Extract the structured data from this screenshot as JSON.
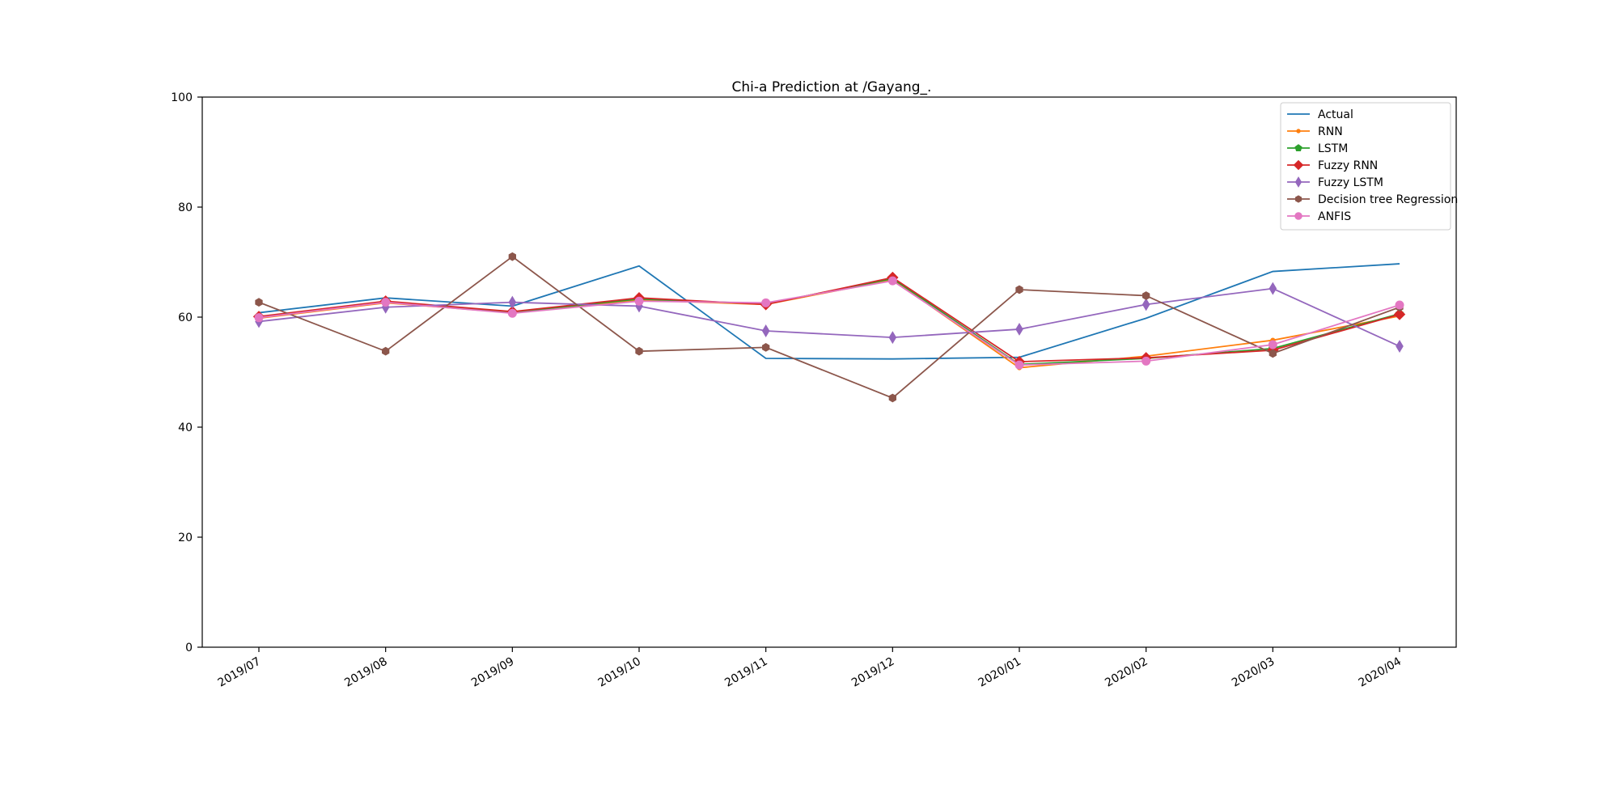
{
  "chart_data": {
    "type": "line",
    "title": "Chi-a Prediction at /Gayang_.",
    "xlabel": "",
    "ylabel": "",
    "ylim": [
      0,
      100
    ],
    "yticks": [
      0,
      20,
      40,
      60,
      80,
      100
    ],
    "grid": false,
    "legend_position": "top-right",
    "x": [
      "2019/07",
      "2019/08",
      "2019/09",
      "2019/10",
      "2019/11",
      "2019/12",
      "2020/01",
      "2020/02",
      "2020/03",
      "2020/04"
    ],
    "series": [
      {
        "name": "Actual",
        "color": "#1f77b4",
        "marker": "none",
        "values": [
          60.8,
          63.5,
          62.0,
          69.3,
          52.5,
          52.4,
          52.7,
          59.8,
          68.3,
          69.7
        ]
      },
      {
        "name": "RNN",
        "color": "#ff7f0e",
        "marker": "point",
        "values": [
          59.8,
          62.6,
          60.8,
          63.1,
          62.3,
          66.8,
          50.8,
          52.9,
          55.8,
          60.2
        ]
      },
      {
        "name": "LSTM",
        "color": "#2ca02c",
        "marker": "pentagon",
        "values": [
          60.0,
          62.8,
          60.9,
          63.3,
          62.4,
          67.0,
          51.4,
          52.5,
          54.3,
          60.6
        ]
      },
      {
        "name": "Fuzzy RNN",
        "color": "#d62728",
        "marker": "diamond",
        "values": [
          60.1,
          62.9,
          61.0,
          63.5,
          62.3,
          67.2,
          51.9,
          52.6,
          54.0,
          60.5
        ]
      },
      {
        "name": "Fuzzy LSTM",
        "color": "#9467bd",
        "marker": "thin_diamond",
        "values": [
          59.2,
          61.8,
          62.7,
          62.0,
          57.5,
          56.3,
          57.8,
          62.3,
          65.2,
          54.7
        ]
      },
      {
        "name": "Decision tree Regression",
        "color": "#8c564b",
        "marker": "hexagon",
        "values": [
          62.7,
          53.8,
          71.0,
          53.8,
          54.5,
          45.3,
          65.0,
          63.9,
          53.4,
          61.8
        ]
      },
      {
        "name": "ANFIS",
        "color": "#e377c2",
        "marker": "circle",
        "values": [
          59.9,
          62.7,
          60.7,
          62.9,
          62.6,
          66.6,
          51.3,
          52.0,
          55.0,
          62.2
        ]
      }
    ]
  }
}
